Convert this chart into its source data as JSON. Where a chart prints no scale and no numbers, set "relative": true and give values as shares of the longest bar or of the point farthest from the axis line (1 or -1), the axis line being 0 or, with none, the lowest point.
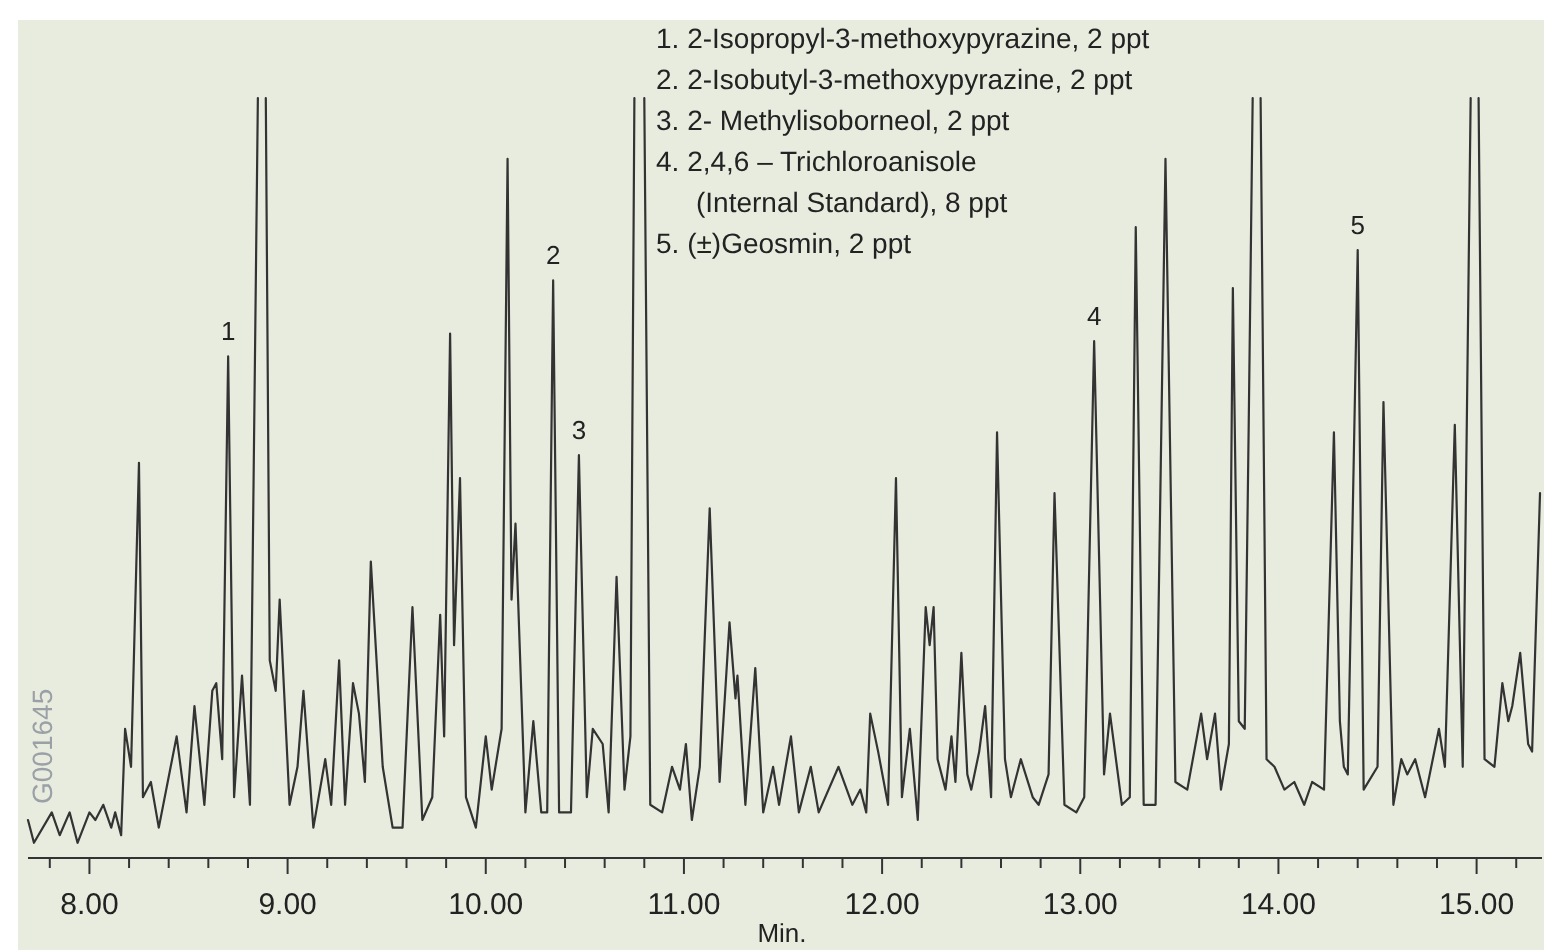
{
  "chart_data": {
    "type": "line",
    "relative": true,
    "xlabel": "Min.",
    "xlim": [
      7.69,
      15.33
    ],
    "xticks": [
      {
        "value": 7.8,
        "label": null
      },
      {
        "value": 8,
        "label": "8.00"
      },
      {
        "value": 8.2,
        "label": null
      },
      {
        "value": 8.4,
        "label": null
      },
      {
        "value": 8.6,
        "label": null
      },
      {
        "value": 8.8,
        "label": null
      },
      {
        "value": 9,
        "label": "9.00"
      },
      {
        "value": 9.2,
        "label": null
      },
      {
        "value": 9.4,
        "label": null
      },
      {
        "value": 9.6,
        "label": null
      },
      {
        "value": 9.8,
        "label": null
      },
      {
        "value": 10,
        "label": "10.00"
      },
      {
        "value": 10.2,
        "label": null
      },
      {
        "value": 10.4,
        "label": null
      },
      {
        "value": 10.6,
        "label": null
      },
      {
        "value": 10.8,
        "label": null
      },
      {
        "value": 11,
        "label": "11.00"
      },
      {
        "value": 11.2,
        "label": null
      },
      {
        "value": 11.4,
        "label": null
      },
      {
        "value": 11.6,
        "label": null
      },
      {
        "value": 11.8,
        "label": null
      },
      {
        "value": 12,
        "label": "12.00"
      },
      {
        "value": 12.2,
        "label": null
      },
      {
        "value": 12.4,
        "label": null
      },
      {
        "value": 12.6,
        "label": null
      },
      {
        "value": 12.8,
        "label": null
      },
      {
        "value": 13,
        "label": "13.00"
      },
      {
        "value": 13.2,
        "label": null
      },
      {
        "value": 13.4,
        "label": null
      },
      {
        "value": 13.6,
        "label": null
      },
      {
        "value": 13.8,
        "label": null
      },
      {
        "value": 14,
        "label": "14.00"
      },
      {
        "value": 14.2,
        "label": null
      },
      {
        "value": 14.4,
        "label": null
      },
      {
        "value": 14.6,
        "label": null
      },
      {
        "value": 14.8,
        "label": null
      },
      {
        "value": 15,
        "label": "15.00"
      },
      {
        "value": 15.2,
        "label": null
      }
    ],
    "series": [
      {
        "color": "#333333",
        "x": [
          7.69,
          7.72,
          7.81,
          7.85,
          7.9,
          7.94,
          8.0,
          8.03,
          8.07,
          8.11,
          8.13,
          8.16,
          8.18,
          8.21,
          8.25,
          8.27,
          8.31,
          8.35,
          8.41,
          8.44,
          8.49,
          8.53,
          8.58,
          8.62,
          8.64,
          8.67,
          8.7,
          8.73,
          8.77,
          8.81,
          8.85,
          8.87,
          8.89,
          8.91,
          8.94,
          8.96,
          9.01,
          9.05,
          9.08,
          9.13,
          9.19,
          9.22,
          9.26,
          9.29,
          9.33,
          9.36,
          9.39,
          9.42,
          9.48,
          9.53,
          9.58,
          9.63,
          9.68,
          9.73,
          9.77,
          9.79,
          9.82,
          9.84,
          9.87,
          9.9,
          9.95,
          10.0,
          10.03,
          10.08,
          10.11,
          10.13,
          10.15,
          10.2,
          10.24,
          10.28,
          10.31,
          10.34,
          10.37,
          10.43,
          10.47,
          10.51,
          10.54,
          10.59,
          10.62,
          10.66,
          10.7,
          10.73,
          10.75,
          10.77,
          10.8,
          10.83,
          10.89,
          10.94,
          10.98,
          11.01,
          11.04,
          11.08,
          11.13,
          11.18,
          11.23,
          11.26,
          11.27,
          11.31,
          11.36,
          11.4,
          11.45,
          11.48,
          11.54,
          11.58,
          11.64,
          11.68,
          11.78,
          11.85,
          11.89,
          11.92,
          11.94,
          11.98,
          12.03,
          12.07,
          12.1,
          12.14,
          12.18,
          12.22,
          12.24,
          12.26,
          12.28,
          12.32,
          12.35,
          12.37,
          12.4,
          12.43,
          12.45,
          12.49,
          12.52,
          12.55,
          12.58,
          12.62,
          12.65,
          12.7,
          12.76,
          12.79,
          12.84,
          12.87,
          12.92,
          12.98,
          13.02,
          13.07,
          13.12,
          13.15,
          13.21,
          13.25,
          13.28,
          13.32,
          13.38,
          13.43,
          13.48,
          13.54,
          13.61,
          13.64,
          13.68,
          13.71,
          13.75,
          13.77,
          13.8,
          13.83,
          13.85,
          13.87,
          13.89,
          13.91,
          13.94,
          13.98,
          14.03,
          14.08,
          14.13,
          14.17,
          14.23,
          14.28,
          14.31,
          14.33,
          14.35,
          14.4,
          14.43,
          14.5,
          14.53,
          14.58,
          14.62,
          14.65,
          14.69,
          14.74,
          14.81,
          14.84,
          14.89,
          14.93,
          14.97,
          14.99,
          15.01,
          15.04,
          15.09,
          15.13,
          15.16,
          15.18,
          15.22,
          15.26,
          15.28,
          15.32
        ],
        "values": [
          0.05,
          0.02,
          0.06,
          0.03,
          0.06,
          0.02,
          0.06,
          0.05,
          0.07,
          0.04,
          0.06,
          0.03,
          0.17,
          0.12,
          0.52,
          0.08,
          0.1,
          0.04,
          0.12,
          0.16,
          0.06,
          0.2,
          0.07,
          0.22,
          0.23,
          0.13,
          0.66,
          0.08,
          0.24,
          0.07,
          1,
          null,
          1,
          0.26,
          0.22,
          0.34,
          0.07,
          0.12,
          0.22,
          0.04,
          0.13,
          0.07,
          0.26,
          0.07,
          0.23,
          0.19,
          0.1,
          0.39,
          0.12,
          0.04,
          0.04,
          0.33,
          0.05,
          0.08,
          0.32,
          0.16,
          0.69,
          0.28,
          0.5,
          0.08,
          0.04,
          0.16,
          0.09,
          0.17,
          0.92,
          0.34,
          0.44,
          0.06,
          0.18,
          0.06,
          0.06,
          0.76,
          0.06,
          0.06,
          0.53,
          0.08,
          0.17,
          0.15,
          0.06,
          0.37,
          0.09,
          0.16,
          1,
          null,
          1,
          0.07,
          0.06,
          0.12,
          0.09,
          0.15,
          0.05,
          0.12,
          0.46,
          0.1,
          0.31,
          0.21,
          0.24,
          0.07,
          0.25,
          0.06,
          0.12,
          0.07,
          0.16,
          0.06,
          0.12,
          0.06,
          0.12,
          0.07,
          0.09,
          0.06,
          0.19,
          0.14,
          0.07,
          0.5,
          0.08,
          0.17,
          0.05,
          0.33,
          0.28,
          0.33,
          0.13,
          0.09,
          0.16,
          0.1,
          0.27,
          0.11,
          0.09,
          0.14,
          0.2,
          0.08,
          0.56,
          0.13,
          0.08,
          0.13,
          0.08,
          0.07,
          0.11,
          0.48,
          0.07,
          0.06,
          0.08,
          0.68,
          0.11,
          0.19,
          0.07,
          0.08,
          0.83,
          0.07,
          0.07,
          0.92,
          0.1,
          0.09,
          0.19,
          0.13,
          0.19,
          0.09,
          0.15,
          0.75,
          0.18,
          0.17,
          0.57,
          1,
          null,
          1,
          0.13,
          0.12,
          0.09,
          0.1,
          0.07,
          0.1,
          0.09,
          0.56,
          0.18,
          0.12,
          0.11,
          0.8,
          0.09,
          0.12,
          0.6,
          0.07,
          0.13,
          0.11,
          0.13,
          0.08,
          0.17,
          0.12,
          0.57,
          0.12,
          1,
          null,
          1,
          0.13,
          0.12,
          0.23,
          0.18,
          0.2,
          0.27,
          0.15,
          0.14,
          0.48
        ]
      }
    ],
    "annotations": [
      "1. 2-Isopropyl-3-methoxypyrazine, 2 ppt\n2. 2-Isobutyl-3-methoxypyrazine, 2 ppt\n3. 2- Methylisoborneol, 2 ppt\n4. 2,4,6 – Trichloroanisole\n(Internal Standard), 8 ppt\n5. (±)Geosmin, 2 ppt",
      "G001645",
      {
        "text": "1",
        "x": 8.7,
        "y": 0.66
      },
      {
        "text": "2",
        "x": 10.34,
        "y": 0.76
      },
      {
        "text": "3",
        "x": 10.47,
        "y": 0.53
      },
      {
        "text": "4",
        "x": 13.07,
        "y": 0.68
      },
      {
        "text": "5",
        "x": 14.4,
        "y": 0.8
      }
    ]
  }
}
